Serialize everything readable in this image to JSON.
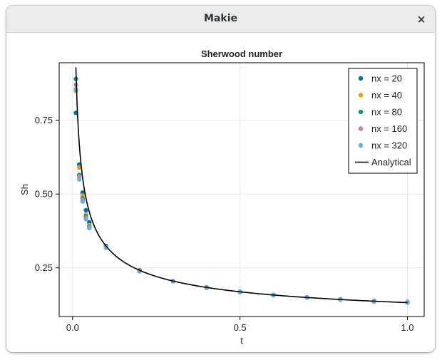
{
  "window": {
    "title": "Makie",
    "close_glyph": "×"
  },
  "chart_data": {
    "type": "scatter",
    "title": "Sherwood number",
    "xlabel": "t",
    "ylabel": "Sh",
    "xlim": [
      -0.04,
      1.05
    ],
    "ylim": [
      0.085,
      0.945
    ],
    "xticks": [
      0.0,
      0.5,
      1.0
    ],
    "xtick_labels": [
      "0.0",
      "0.5",
      "1.0"
    ],
    "yticks": [
      0.25,
      0.5,
      0.75
    ],
    "ytick_labels": [
      "0.25",
      "0.50",
      "0.75"
    ],
    "grid": true,
    "legend_position": "top-right",
    "analytical_model": "Sh = 0.0886 / sqrt(t) + 0.0435",
    "series": [
      {
        "name": "nx = 20",
        "color": "#0072b2",
        "x": [
          0.01,
          0.02,
          0.03,
          0.04,
          0.05,
          0.1,
          0.2,
          0.3,
          0.4,
          0.5,
          0.6,
          0.7,
          0.8,
          0.9,
          1.0
        ],
        "y": [
          0.775,
          0.6,
          0.505,
          0.445,
          0.404,
          0.324,
          0.242,
          0.205,
          0.184,
          0.169,
          0.158,
          0.15,
          0.143,
          0.138,
          0.134
        ]
      },
      {
        "name": "nx = 40",
        "color": "#e69f00",
        "x": [
          0.01,
          0.02,
          0.03,
          0.04,
          0.05,
          0.1,
          0.2,
          0.3,
          0.4,
          0.5,
          0.6,
          0.7,
          0.8,
          0.9,
          1.0
        ],
        "y": [
          0.85,
          0.59,
          0.495,
          0.43,
          0.394,
          0.322,
          0.241,
          0.205,
          0.183,
          0.168,
          0.158,
          0.149,
          0.143,
          0.137,
          0.133
        ]
      },
      {
        "name": "nx = 80",
        "color": "#009e73",
        "x": [
          0.01,
          0.02,
          0.03,
          0.04,
          0.05,
          0.1,
          0.2,
          0.3,
          0.4,
          0.5,
          0.6,
          0.7,
          0.8,
          0.9,
          1.0
        ],
        "y": [
          0.89,
          0.565,
          0.485,
          0.425,
          0.39,
          0.321,
          0.24,
          0.205,
          0.183,
          0.168,
          0.158,
          0.149,
          0.143,
          0.137,
          0.133
        ]
      },
      {
        "name": "nx = 160",
        "color": "#cc79a7",
        "x": [
          0.01,
          0.02,
          0.03,
          0.04,
          0.05,
          0.1,
          0.2,
          0.3,
          0.4,
          0.5,
          0.6,
          0.7,
          0.8,
          0.9,
          1.0
        ],
        "y": [
          0.87,
          0.56,
          0.48,
          0.42,
          0.388,
          0.32,
          0.24,
          0.205,
          0.183,
          0.168,
          0.158,
          0.149,
          0.142,
          0.137,
          0.133
        ]
      },
      {
        "name": "nx = 320",
        "color": "#56b4e9",
        "x": [
          0.01,
          0.02,
          0.03,
          0.04,
          0.05,
          0.1,
          0.2,
          0.3,
          0.4,
          0.5,
          0.6,
          0.7,
          0.8,
          0.9,
          1.0
        ],
        "y": [
          0.855,
          0.55,
          0.475,
          0.415,
          0.385,
          0.318,
          0.238,
          0.204,
          0.182,
          0.168,
          0.157,
          0.149,
          0.142,
          0.136,
          0.132
        ]
      }
    ],
    "analytical": {
      "name": "Analytical",
      "color": "#000000"
    }
  }
}
